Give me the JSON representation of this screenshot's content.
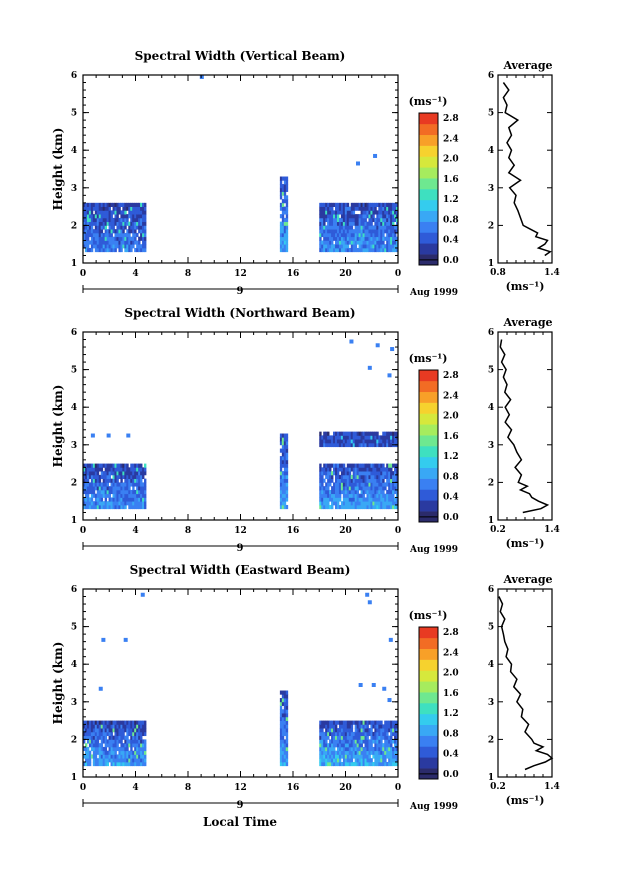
{
  "figure": {
    "x_label": "Local Time",
    "y_label": "Height (km)",
    "date_label": "Aug 1999",
    "day_label": "9",
    "colorbar_unit": "(ms⁻¹)",
    "avg_xlabel": "(ms⁻¹)",
    "avg_title": "Average"
  },
  "panels": [
    {
      "title": "Spectral Width (Vertical Beam)",
      "avg_xticks": [
        "0.8",
        "1.4"
      ]
    },
    {
      "title": "Spectral Width (Northward Beam)",
      "avg_xticks": [
        "0.2",
        "1.4"
      ]
    },
    {
      "title": "Spectral Width (Eastward Beam)",
      "avg_xticks": [
        "0.2",
        "1.4"
      ]
    }
  ],
  "axes": {
    "x_ticks": [
      "0",
      "4",
      "8",
      "12",
      "16",
      "20",
      "0"
    ],
    "y_ticks": [
      "1",
      "2",
      "3",
      "4",
      "5",
      "6"
    ],
    "colorbar_ticks": [
      "0.0",
      "0.4",
      "0.8",
      "1.2",
      "1.6",
      "2.0",
      "2.4",
      "2.8"
    ],
    "colorbar_colors": [
      "#2b2b6b",
      "#2a3aa0",
      "#2f5bd8",
      "#3a80f2",
      "#39a8f5",
      "#34ccee",
      "#3ee0c0",
      "#6ee890",
      "#a6ec5e",
      "#d6e83c",
      "#f6d22e",
      "#f8a028",
      "#f26c24",
      "#e83a22"
    ]
  },
  "chart_data": [
    {
      "type": "heatmap",
      "title": "Spectral Width (Vertical Beam)",
      "xlabel": "Local Time",
      "ylabel": "Height (km)",
      "xlim": [
        0,
        24
      ],
      "ylim": [
        1,
        6
      ],
      "color_range": [
        0.0,
        3.0
      ],
      "segments": [
        {
          "t0": 0.0,
          "t1": 4.8,
          "h0": 1.3,
          "h1": 2.55,
          "core": 0.7,
          "edge": 0.35
        },
        {
          "t0": 15.0,
          "t1": 15.5,
          "h0": 1.3,
          "h1": 3.3,
          "core": 0.9,
          "edge": 0.4
        },
        {
          "t0": 18.0,
          "t1": 24.0,
          "h0": 1.3,
          "h1": 2.55,
          "core": 0.8,
          "edge": 0.4
        }
      ],
      "isolated": [
        {
          "t": 8.9,
          "h": 5.9
        },
        {
          "t": 22.1,
          "h": 3.8
        },
        {
          "t": 20.8,
          "h": 3.6
        }
      ],
      "average_profile": {
        "xlabel": "(ms⁻¹)",
        "xlim": [
          0.8,
          1.4
        ],
        "height": [
          1.2,
          1.3,
          1.4,
          1.5,
          1.6,
          1.7,
          1.8,
          1.9,
          2.0,
          2.2,
          2.4,
          2.6,
          2.8,
          3.0,
          3.2,
          3.4,
          3.6,
          3.8,
          4.0,
          4.2,
          4.4,
          4.6,
          4.8,
          5.0,
          5.2,
          5.4,
          5.6,
          5.8
        ],
        "width": [
          1.32,
          1.38,
          1.25,
          1.32,
          1.35,
          1.22,
          1.24,
          1.16,
          1.08,
          1.05,
          1.02,
          0.98,
          1.0,
          0.93,
          1.05,
          0.92,
          0.98,
          0.92,
          0.95,
          0.9,
          0.95,
          0.92,
          1.02,
          0.88,
          0.9,
          0.86,
          0.92,
          0.86
        ]
      }
    },
    {
      "type": "heatmap",
      "title": "Spectral Width (Northward Beam)",
      "xlabel": "Local Time",
      "ylabel": "Height (km)",
      "xlim": [
        0,
        24
      ],
      "ylim": [
        1,
        6
      ],
      "color_range": [
        0.0,
        3.0
      ],
      "segments": [
        {
          "t0": 0.0,
          "t1": 4.8,
          "h0": 1.3,
          "h1": 2.5,
          "core": 0.8,
          "edge": 0.35
        },
        {
          "t0": 15.0,
          "t1": 15.6,
          "h0": 1.3,
          "h1": 3.3,
          "core": 0.9,
          "edge": 0.4
        },
        {
          "t0": 18.0,
          "t1": 24.0,
          "h0": 1.3,
          "h1": 2.5,
          "core": 0.9,
          "edge": 0.4
        },
        {
          "t0": 18.0,
          "t1": 24.0,
          "h0": 2.95,
          "h1": 3.3,
          "core": 0.5,
          "edge": 0.3
        }
      ],
      "isolated": [
        {
          "t": 20.3,
          "h": 5.7
        },
        {
          "t": 22.3,
          "h": 5.6
        },
        {
          "t": 23.4,
          "h": 5.5
        },
        {
          "t": 21.7,
          "h": 5.0
        },
        {
          "t": 23.2,
          "h": 4.8
        },
        {
          "t": 0.6,
          "h": 3.2
        },
        {
          "t": 1.8,
          "h": 3.2
        },
        {
          "t": 3.3,
          "h": 3.2
        }
      ],
      "average_profile": {
        "xlabel": "(ms⁻¹)",
        "xlim": [
          0.2,
          1.4
        ],
        "height": [
          1.2,
          1.3,
          1.4,
          1.5,
          1.6,
          1.7,
          1.8,
          1.9,
          2.0,
          2.2,
          2.4,
          2.6,
          2.8,
          3.0,
          3.2,
          3.4,
          3.6,
          3.8,
          4.0,
          4.2,
          4.4,
          4.6,
          4.8,
          5.0,
          5.2,
          5.4,
          5.6,
          5.8
        ],
        "width": [
          0.75,
          1.15,
          1.3,
          1.1,
          0.95,
          0.9,
          0.7,
          0.85,
          0.65,
          0.72,
          0.58,
          0.72,
          0.62,
          0.55,
          0.42,
          0.5,
          0.36,
          0.45,
          0.36,
          0.48,
          0.35,
          0.4,
          0.32,
          0.38,
          0.28,
          0.35,
          0.25,
          0.28
        ]
      }
    },
    {
      "type": "heatmap",
      "title": "Spectral Width (Eastward Beam)",
      "xlabel": "Local Time",
      "ylabel": "Height (km)",
      "xlim": [
        0,
        24
      ],
      "ylim": [
        1,
        6
      ],
      "color_range": [
        0.0,
        3.0
      ],
      "segments": [
        {
          "t0": 0.0,
          "t1": 4.8,
          "h0": 1.3,
          "h1": 2.45,
          "core": 0.9,
          "edge": 0.4
        },
        {
          "t0": 15.0,
          "t1": 15.5,
          "h0": 1.3,
          "h1": 3.3,
          "core": 0.9,
          "edge": 0.4
        },
        {
          "t0": 18.0,
          "t1": 24.0,
          "h0": 1.3,
          "h1": 2.45,
          "core": 1.0,
          "edge": 0.4
        }
      ],
      "isolated": [
        {
          "t": 4.4,
          "h": 5.8
        },
        {
          "t": 1.4,
          "h": 4.6
        },
        {
          "t": 3.1,
          "h": 4.6
        },
        {
          "t": 1.2,
          "h": 3.3
        },
        {
          "t": 21.5,
          "h": 5.8
        },
        {
          "t": 21.7,
          "h": 5.6
        },
        {
          "t": 23.3,
          "h": 4.6
        },
        {
          "t": 21.0,
          "h": 3.4
        },
        {
          "t": 22.0,
          "h": 3.4
        },
        {
          "t": 22.8,
          "h": 3.3
        },
        {
          "t": 23.2,
          "h": 3.0
        }
      ],
      "average_profile": {
        "xlabel": "(ms⁻¹)",
        "xlim": [
          0.2,
          1.4
        ],
        "height": [
          1.2,
          1.3,
          1.4,
          1.5,
          1.6,
          1.7,
          1.8,
          1.9,
          2.0,
          2.2,
          2.4,
          2.6,
          2.8,
          3.0,
          3.2,
          3.4,
          3.6,
          3.8,
          4.0,
          4.2,
          4.4,
          4.6,
          4.8,
          5.0,
          5.2,
          5.4,
          5.6,
          5.8
        ],
        "width": [
          0.8,
          1.0,
          1.25,
          1.4,
          1.3,
          1.05,
          1.2,
          1.0,
          0.95,
          0.8,
          0.88,
          0.72,
          0.75,
          0.62,
          0.7,
          0.55,
          0.62,
          0.48,
          0.5,
          0.38,
          0.42,
          0.35,
          0.32,
          0.28,
          0.35,
          0.25,
          0.3,
          0.22
        ]
      }
    }
  ]
}
